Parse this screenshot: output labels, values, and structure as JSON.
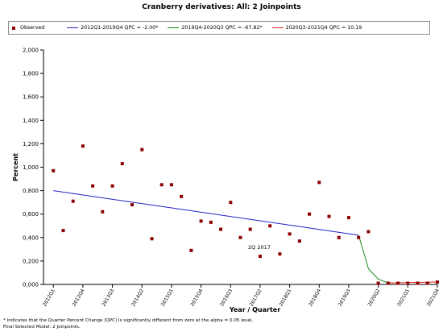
{
  "chart_data": {
    "type": "scatter",
    "title": "Cranberry derivatives: All: 2 Joinpoints",
    "xlabel": "Year / Quarter",
    "ylabel": "Percent",
    "ylim": [
      0,
      2
    ],
    "yticks": [
      "0,000",
      "0,200",
      "0,400",
      "0,600",
      "0,800",
      "1,000",
      "1,200",
      "1,400",
      "1,600",
      "1,800",
      "2,000"
    ],
    "xlim": [
      0,
      40
    ],
    "xticks": [
      "2012Q1",
      "2012Q4",
      "2013Q3",
      "2014Q2",
      "2015Q1",
      "2015Q4",
      "2016Q3",
      "2017Q2",
      "2018Q1",
      "2018Q4",
      "2019Q3",
      "2020Q2",
      "2021Q1",
      "2021Q4"
    ],
    "grid": false,
    "legend_position": "top",
    "annotation": "2Q 2017",
    "series": [
      {
        "name": "Observed",
        "kind": "points",
        "color": "#8b0000",
        "x": [
          1,
          2,
          3,
          4,
          5,
          6,
          7,
          8,
          9,
          10,
          11,
          12,
          13,
          14,
          15,
          16,
          17,
          18,
          19,
          20,
          21,
          22,
          23,
          24,
          25,
          26,
          27,
          28,
          29,
          30,
          31,
          32,
          33,
          34,
          35,
          36,
          37,
          38,
          39,
          40
        ],
        "y": [
          0.97,
          0.46,
          0.71,
          1.18,
          0.84,
          0.62,
          0.84,
          1.03,
          0.68,
          1.15,
          0.39,
          0.85,
          0.85,
          0.75,
          0.29,
          0.54,
          0.53,
          0.47,
          0.7,
          0.4,
          0.47,
          0.24,
          0.5,
          0.26,
          0.43,
          0.37,
          0.6,
          0.87,
          0.58,
          0.4,
          0.57,
          0.4,
          0.45,
          0.01,
          0.01,
          0.01,
          0.01,
          0.01,
          0.01,
          0.02
        ]
      },
      {
        "name": "2012Q1-2019Q4 QPC = -2.00*",
        "kind": "line",
        "color": "#2020c8",
        "x": [
          1,
          32
        ],
        "y": [
          0.8,
          0.42
        ]
      },
      {
        "name": "2019Q4-2020Q3 QPC = -67.82*",
        "kind": "line",
        "color": "#1a8a1a",
        "x": [
          32,
          33,
          34,
          35
        ],
        "y": [
          0.42,
          0.135,
          0.045,
          0.013
        ]
      },
      {
        "name": "2020Q3-2021Q4 QPC = 10.19",
        "kind": "line",
        "color": "#e02020",
        "x": [
          35,
          36,
          37,
          38,
          39,
          40
        ],
        "y": [
          0.013,
          0.014,
          0.016,
          0.017,
          0.019,
          0.021
        ]
      }
    ],
    "footnote": [
      "* Indicates that the Quarter Percent Change (QPC) is significantly different from zero at the alpha = 0.05 level.",
      "Final Selected Model: 2 Joinpoints."
    ]
  }
}
